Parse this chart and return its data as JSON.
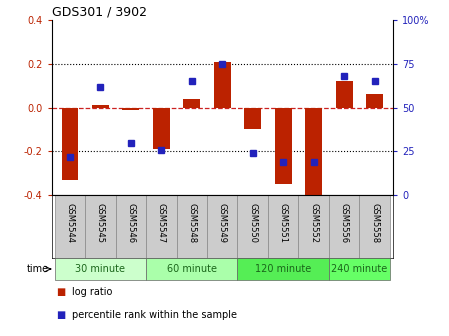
{
  "title": "GDS301 / 3902",
  "samples": [
    "GSM5544",
    "GSM5545",
    "GSM5546",
    "GSM5547",
    "GSM5548",
    "GSM5549",
    "GSM5550",
    "GSM5551",
    "GSM5552",
    "GSM5556",
    "GSM5558"
  ],
  "log_ratio": [
    -0.33,
    0.01,
    -0.01,
    -0.19,
    0.04,
    0.21,
    -0.1,
    -0.35,
    -0.42,
    0.12,
    0.06
  ],
  "percentile": [
    22,
    62,
    30,
    26,
    65,
    75,
    24,
    19,
    19,
    68,
    65
  ],
  "group_labels": [
    "30 minute",
    "60 minute",
    "120 minute",
    "240 minute"
  ],
  "group_sizes": [
    3,
    3,
    3,
    2
  ],
  "group_colors": [
    "#ccffcc",
    "#aaffaa",
    "#55ee55",
    "#66ff66"
  ],
  "ylim": [
    -0.4,
    0.4
  ],
  "yticks_left": [
    -0.4,
    -0.2,
    0.0,
    0.2,
    0.4
  ],
  "yticks_right_pct": [
    0,
    25,
    50,
    75,
    100
  ],
  "bar_color": "#bb2200",
  "dot_color": "#2222bb",
  "zero_line_color": "#cc2222",
  "bar_width": 0.55,
  "label_box_color": "#cccccc",
  "legend_bar_label": "log ratio",
  "legend_dot_label": "percentile rank within the sample"
}
